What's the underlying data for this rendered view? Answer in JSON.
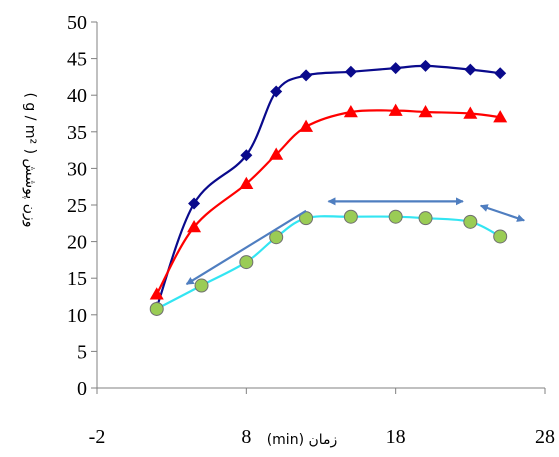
{
  "chart_data": {
    "type": "line",
    "title": "",
    "xlabel": "(min) زمان",
    "ylabel": "( g / m² ) وزن پوشش",
    "xlim": [
      -2,
      28
    ],
    "ylim": [
      0,
      50
    ],
    "x_ticks": [
      -2,
      8,
      18,
      28
    ],
    "y_ticks": [
      0,
      5,
      10,
      15,
      20,
      25,
      30,
      35,
      40,
      45,
      50
    ],
    "grid": false,
    "legend": "none",
    "series": [
      {
        "color": "#0a0a8c",
        "marker": "diamond",
        "x": [
          2,
          4.5,
          8,
          10,
          12,
          15,
          18,
          20,
          23,
          25
        ],
        "y": [
          11,
          25.2,
          31.8,
          40.5,
          42.7,
          43.2,
          43.7,
          44,
          43.5,
          43
        ]
      },
      {
        "color": "#ff0000",
        "marker": "triangle",
        "x": [
          2,
          4.5,
          8,
          10,
          12,
          15,
          18,
          20,
          23,
          25
        ],
        "y": [
          12.8,
          22,
          27.9,
          31.9,
          35.7,
          37.7,
          37.9,
          37.7,
          37.5,
          37
        ]
      },
      {
        "color": "#33e5f2",
        "marker": "circle",
        "marker_color": "#9acc55",
        "x": [
          2,
          5,
          8,
          10,
          12,
          15,
          18,
          20,
          23,
          25
        ],
        "y": [
          10.8,
          14,
          17.2,
          20.6,
          23.2,
          23.4,
          23.4,
          23.2,
          22.7,
          20.7
        ]
      }
    ],
    "annotations": [
      {
        "type": "arrow",
        "heads": "one",
        "color": "#4f7ec0",
        "from": [
          12,
          24.2
        ],
        "to": [
          4,
          14.2
        ]
      },
      {
        "type": "arrow",
        "heads": "both",
        "color": "#4f7ec0",
        "from": [
          13.5,
          25.5
        ],
        "to": [
          22.5,
          25.5
        ]
      },
      {
        "type": "arrow",
        "heads": "both",
        "color": "#4f7ec0",
        "from": [
          23.7,
          24.9
        ],
        "to": [
          26.6,
          22.9
        ]
      }
    ]
  }
}
